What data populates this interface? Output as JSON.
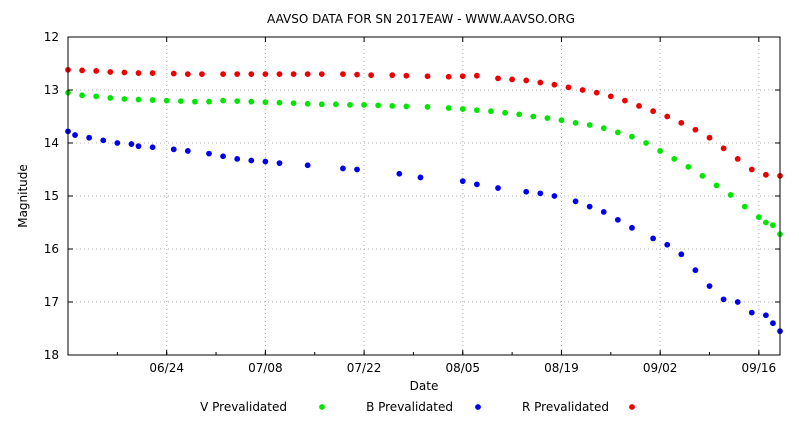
{
  "chart_data": {
    "type": "scatter",
    "title": "AAVSO DATA FOR SN 2017EAW - WWW.AAVSO.ORG",
    "xlabel": "Date",
    "ylabel": "Magnitude",
    "ylim": [
      18,
      12
    ],
    "y_inverted": true,
    "xlim": [
      "2017-06-10",
      "2017-09-19"
    ],
    "x_ticks": [
      {
        "date": "2017-06-24",
        "label": "06/24"
      },
      {
        "date": "2017-07-08",
        "label": "07/08"
      },
      {
        "date": "2017-07-22",
        "label": "07/22"
      },
      {
        "date": "2017-08-05",
        "label": "08/05"
      },
      {
        "date": "2017-08-19",
        "label": "08/19"
      },
      {
        "date": "2017-09-02",
        "label": "09/02"
      },
      {
        "date": "2017-09-16",
        "label": "09/16"
      }
    ],
    "y_ticks": [
      12,
      13,
      14,
      15,
      16,
      17,
      18
    ],
    "grid": true,
    "legend_placement": "bottom",
    "series": [
      {
        "name": "V Prevalidated",
        "color": "#00e600",
        "points": [
          [
            "2017-06-10",
            13.05
          ],
          [
            "2017-06-12",
            13.1
          ],
          [
            "2017-06-14",
            13.12
          ],
          [
            "2017-06-16",
            13.15
          ],
          [
            "2017-06-18",
            13.17
          ],
          [
            "2017-06-20",
            13.18
          ],
          [
            "2017-06-22",
            13.19
          ],
          [
            "2017-06-24",
            13.2
          ],
          [
            "2017-06-26",
            13.21
          ],
          [
            "2017-06-28",
            13.22
          ],
          [
            "2017-06-30",
            13.22
          ],
          [
            "2017-07-02",
            13.2
          ],
          [
            "2017-07-04",
            13.21
          ],
          [
            "2017-07-06",
            13.22
          ],
          [
            "2017-07-08",
            13.23
          ],
          [
            "2017-07-10",
            13.24
          ],
          [
            "2017-07-12",
            13.25
          ],
          [
            "2017-07-14",
            13.26
          ],
          [
            "2017-07-16",
            13.27
          ],
          [
            "2017-07-18",
            13.27
          ],
          [
            "2017-07-20",
            13.28
          ],
          [
            "2017-07-22",
            13.28
          ],
          [
            "2017-07-24",
            13.29
          ],
          [
            "2017-07-26",
            13.3
          ],
          [
            "2017-07-28",
            13.31
          ],
          [
            "2017-07-31",
            13.32
          ],
          [
            "2017-08-03",
            13.34
          ],
          [
            "2017-08-05",
            13.36
          ],
          [
            "2017-08-07",
            13.38
          ],
          [
            "2017-08-09",
            13.4
          ],
          [
            "2017-08-11",
            13.43
          ],
          [
            "2017-08-13",
            13.46
          ],
          [
            "2017-08-15",
            13.5
          ],
          [
            "2017-08-17",
            13.53
          ],
          [
            "2017-08-19",
            13.57
          ],
          [
            "2017-08-21",
            13.62
          ],
          [
            "2017-08-23",
            13.66
          ],
          [
            "2017-08-25",
            13.72
          ],
          [
            "2017-08-27",
            13.8
          ],
          [
            "2017-08-29",
            13.88
          ],
          [
            "2017-08-31",
            14.0
          ],
          [
            "2017-09-02",
            14.15
          ],
          [
            "2017-09-04",
            14.3
          ],
          [
            "2017-09-06",
            14.45
          ],
          [
            "2017-09-08",
            14.62
          ],
          [
            "2017-09-10",
            14.8
          ],
          [
            "2017-09-12",
            14.98
          ],
          [
            "2017-09-14",
            15.2
          ],
          [
            "2017-09-16",
            15.4
          ],
          [
            "2017-09-17",
            15.5
          ],
          [
            "2017-09-18",
            15.55
          ],
          [
            "2017-09-19",
            15.72
          ]
        ]
      },
      {
        "name": "B Prevalidated",
        "color": "#0000ee",
        "points": [
          [
            "2017-06-10",
            13.78
          ],
          [
            "2017-06-11",
            13.85
          ],
          [
            "2017-06-13",
            13.9
          ],
          [
            "2017-06-15",
            13.95
          ],
          [
            "2017-06-17",
            14.0
          ],
          [
            "2017-06-19",
            14.02
          ],
          [
            "2017-06-20",
            14.06
          ],
          [
            "2017-06-22",
            14.08
          ],
          [
            "2017-06-25",
            14.12
          ],
          [
            "2017-06-27",
            14.15
          ],
          [
            "2017-06-30",
            14.2
          ],
          [
            "2017-07-02",
            14.25
          ],
          [
            "2017-07-04",
            14.3
          ],
          [
            "2017-07-06",
            14.33
          ],
          [
            "2017-07-08",
            14.35
          ],
          [
            "2017-07-10",
            14.38
          ],
          [
            "2017-07-14",
            14.42
          ],
          [
            "2017-07-19",
            14.48
          ],
          [
            "2017-07-21",
            14.5
          ],
          [
            "2017-07-27",
            14.58
          ],
          [
            "2017-07-30",
            14.65
          ],
          [
            "2017-08-05",
            14.72
          ],
          [
            "2017-08-07",
            14.78
          ],
          [
            "2017-08-10",
            14.85
          ],
          [
            "2017-08-14",
            14.92
          ],
          [
            "2017-08-16",
            14.95
          ],
          [
            "2017-08-18",
            15.0
          ],
          [
            "2017-08-21",
            15.1
          ],
          [
            "2017-08-23",
            15.2
          ],
          [
            "2017-08-25",
            15.3
          ],
          [
            "2017-08-27",
            15.45
          ],
          [
            "2017-08-29",
            15.6
          ],
          [
            "2017-09-01",
            15.8
          ],
          [
            "2017-09-03",
            15.92
          ],
          [
            "2017-09-05",
            16.1
          ],
          [
            "2017-09-07",
            16.4
          ],
          [
            "2017-09-09",
            16.7
          ],
          [
            "2017-09-11",
            16.95
          ],
          [
            "2017-09-13",
            17.0
          ],
          [
            "2017-09-15",
            17.2
          ],
          [
            "2017-09-17",
            17.25
          ],
          [
            "2017-09-18",
            17.4
          ],
          [
            "2017-09-19",
            17.55
          ]
        ]
      },
      {
        "name": "R Prevalidated",
        "color": "#ee0000",
        "points": [
          [
            "2017-06-10",
            12.62
          ],
          [
            "2017-06-12",
            12.63
          ],
          [
            "2017-06-14",
            12.64
          ],
          [
            "2017-06-16",
            12.66
          ],
          [
            "2017-06-18",
            12.67
          ],
          [
            "2017-06-20",
            12.68
          ],
          [
            "2017-06-22",
            12.68
          ],
          [
            "2017-06-25",
            12.69
          ],
          [
            "2017-06-27",
            12.7
          ],
          [
            "2017-06-29",
            12.7
          ],
          [
            "2017-07-02",
            12.7
          ],
          [
            "2017-07-04",
            12.7
          ],
          [
            "2017-07-06",
            12.7
          ],
          [
            "2017-07-08",
            12.7
          ],
          [
            "2017-07-10",
            12.7
          ],
          [
            "2017-07-12",
            12.7
          ],
          [
            "2017-07-14",
            12.7
          ],
          [
            "2017-07-16",
            12.7
          ],
          [
            "2017-07-19",
            12.7
          ],
          [
            "2017-07-21",
            12.71
          ],
          [
            "2017-07-23",
            12.72
          ],
          [
            "2017-07-26",
            12.72
          ],
          [
            "2017-07-28",
            12.73
          ],
          [
            "2017-07-31",
            12.74
          ],
          [
            "2017-08-03",
            12.75
          ],
          [
            "2017-08-05",
            12.74
          ],
          [
            "2017-08-07",
            12.73
          ],
          [
            "2017-08-10",
            12.78
          ],
          [
            "2017-08-12",
            12.8
          ],
          [
            "2017-08-14",
            12.82
          ],
          [
            "2017-08-16",
            12.86
          ],
          [
            "2017-08-18",
            12.9
          ],
          [
            "2017-08-20",
            12.95
          ],
          [
            "2017-08-22",
            13.0
          ],
          [
            "2017-08-24",
            13.05
          ],
          [
            "2017-08-26",
            13.12
          ],
          [
            "2017-08-28",
            13.2
          ],
          [
            "2017-08-30",
            13.3
          ],
          [
            "2017-09-01",
            13.4
          ],
          [
            "2017-09-03",
            13.5
          ],
          [
            "2017-09-05",
            13.62
          ],
          [
            "2017-09-07",
            13.75
          ],
          [
            "2017-09-09",
            13.9
          ],
          [
            "2017-09-11",
            14.1
          ],
          [
            "2017-09-13",
            14.3
          ],
          [
            "2017-09-15",
            14.5
          ],
          [
            "2017-09-17",
            14.6
          ],
          [
            "2017-09-19",
            14.62
          ]
        ]
      }
    ]
  }
}
